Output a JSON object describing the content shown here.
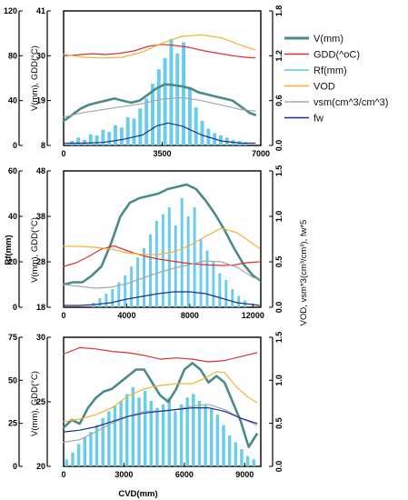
{
  "colors": {
    "V": "#4a8a88",
    "GDD": "#e03030",
    "Rf": "#5cc8e6",
    "VOD": "#f2b236",
    "vsm": "#a8a8a8",
    "fw": "#1d2f8c"
  },
  "legend": [
    {
      "key": "V",
      "label": "V(mm)"
    },
    {
      "key": "GDD",
      "label": "GDD(^oC)"
    },
    {
      "key": "Rf",
      "label": "Rf(mm)"
    },
    {
      "key": "VOD",
      "label": "VOD"
    },
    {
      "key": "vsm",
      "label": "vsm(cm^3/cm^3)"
    },
    {
      "key": "fw",
      "label": "fw"
    }
  ],
  "shared": {
    "xlabel": "CVD(mm)",
    "right_label": "VOD, vsm*3(cm³/cm³), fw*5"
  },
  "chart_data": [
    {
      "type": "line",
      "panel": "top",
      "xlim": [
        0,
        7000
      ],
      "xticks": [
        "0",
        "3500",
        "7000"
      ],
      "left_outer": {
        "ylim": [
          0,
          120
        ],
        "ticks": [
          "0",
          "40",
          "80",
          "120"
        ],
        "label": "Rf(mm)"
      },
      "left_inner": {
        "ylim": [
          8,
          41
        ],
        "ticks": [
          "8",
          "19",
          "30",
          "41"
        ],
        "label": "V(mm), GDD(°C)"
      },
      "right": {
        "ylim": [
          0,
          1.8
        ],
        "ticks": [
          "0.0",
          "0.6",
          "1.2",
          "1.8"
        ]
      },
      "series": [
        {
          "key": "Rf",
          "axis": "left_outer",
          "x": [
            300,
            520,
            740,
            960,
            1180,
            1400,
            1620,
            1840,
            2060,
            2280,
            2500,
            2720,
            2940,
            3160,
            3380,
            3600,
            3820,
            4040,
            4260,
            4480,
            4700,
            4920,
            5140,
            5360,
            5580,
            5800,
            6020,
            6240,
            6460
          ],
          "y": [
            4,
            7,
            5,
            10,
            9,
            14,
            12,
            18,
            16,
            25,
            24,
            33,
            42,
            55,
            68,
            78,
            95,
            82,
            92,
            52,
            34,
            22,
            15,
            11,
            9,
            7,
            5,
            4,
            3
          ]
        },
        {
          "key": "V",
          "axis": "left_inner",
          "x": [
            0,
            300,
            600,
            900,
            1200,
            1500,
            1800,
            2100,
            2400,
            2700,
            3000,
            3300,
            3600,
            3900,
            4200,
            4500,
            4800,
            5100,
            5400,
            5700,
            6000,
            6300,
            6600,
            6800
          ],
          "y": [
            14,
            15.5,
            17,
            18,
            18.5,
            19,
            19.5,
            19,
            18.5,
            19,
            20.5,
            22,
            23,
            22.8,
            22.5,
            22,
            21,
            20.5,
            20,
            19.5,
            19,
            17.5,
            16,
            15.5
          ]
        },
        {
          "key": "GDD",
          "axis": "left_inner",
          "x": [
            0,
            500,
            1000,
            1500,
            2000,
            2500,
            3000,
            3500,
            4000,
            4500,
            5000,
            5500,
            6000,
            6500,
            6800
          ],
          "y": [
            30,
            30.2,
            30.5,
            30.3,
            30.6,
            31.2,
            32.3,
            32.8,
            32.5,
            32.0,
            31.2,
            30.6,
            30.0,
            29.6,
            29.5
          ]
        },
        {
          "key": "VOD",
          "axis": "right",
          "x": [
            0,
            700,
            1400,
            2100,
            2800,
            3500,
            4200,
            4900,
            5600,
            6300,
            6800
          ],
          "y": [
            1.22,
            1.18,
            1.17,
            1.18,
            1.25,
            1.37,
            1.46,
            1.48,
            1.44,
            1.34,
            1.28
          ]
        },
        {
          "key": "vsm",
          "axis": "right",
          "x": [
            0,
            700,
            1400,
            2100,
            2800,
            3500,
            4200,
            4900,
            5600,
            6300,
            6800
          ],
          "y": [
            0.38,
            0.44,
            0.48,
            0.52,
            0.56,
            0.62,
            0.64,
            0.6,
            0.54,
            0.48,
            0.46
          ]
        },
        {
          "key": "fw",
          "axis": "right",
          "x": [
            0,
            700,
            1400,
            2100,
            2800,
            3300,
            3700,
            4200,
            4900,
            5600,
            6300,
            6800
          ],
          "y": [
            0.03,
            0.03,
            0.04,
            0.08,
            0.14,
            0.26,
            0.3,
            0.26,
            0.14,
            0.06,
            0.03,
            0.03
          ]
        }
      ]
    },
    {
      "type": "line",
      "panel": "middle",
      "xlim": [
        0,
        12500
      ],
      "xticks": [
        "0",
        "4000",
        "8000",
        "12000"
      ],
      "left_outer": {
        "ylim": [
          0,
          60
        ],
        "ticks": [
          "0",
          "20",
          "40",
          "60"
        ],
        "label": "Rf(mm)"
      },
      "left_inner": {
        "ylim": [
          18,
          48
        ],
        "ticks": [
          "18",
          "28",
          "38",
          "48"
        ],
        "label": "V(mm), GDD(°C)"
      },
      "right": {
        "ylim": [
          0,
          1.5
        ],
        "ticks": [
          "0.0",
          "0.5",
          "1.0",
          "1.5"
        ]
      },
      "series": [
        {
          "key": "Rf",
          "axis": "left_outer",
          "x": [
            1900,
            2300,
            2700,
            3100,
            3500,
            3900,
            4300,
            4700,
            5100,
            5500,
            5900,
            6300,
            6700,
            7100,
            7500,
            7900,
            8300,
            8700,
            9100,
            9500,
            9900,
            10300,
            10700,
            11100,
            11500
          ],
          "y": [
            2,
            4,
            6,
            8,
            11,
            14,
            18,
            22,
            26,
            32,
            38,
            41,
            44,
            36,
            48,
            40,
            44,
            30,
            25,
            20,
            15,
            12,
            8,
            5,
            3
          ]
        },
        {
          "key": "V",
          "axis": "left_inner",
          "x": [
            0,
            600,
            1200,
            1800,
            2400,
            3000,
            3600,
            4200,
            4800,
            5400,
            6000,
            6600,
            7200,
            7800,
            8400,
            9000,
            9600,
            10200,
            10800,
            11400,
            12000,
            12400
          ],
          "y": [
            23,
            23.5,
            23.5,
            25,
            27,
            32,
            38,
            41,
            42,
            42.5,
            43,
            44,
            44.5,
            45,
            44,
            41.5,
            38.5,
            35,
            31,
            27.5,
            25,
            24
          ]
        },
        {
          "key": "GDD",
          "axis": "left_inner",
          "x": [
            0,
            800,
            1600,
            2400,
            3200,
            3600,
            4400,
            5200,
            6000,
            6800,
            7600,
            8400,
            9200,
            10000,
            10800,
            11600,
            12400
          ],
          "y": [
            27,
            27.8,
            29.2,
            30.8,
            31.5,
            31,
            30,
            29.2,
            28.6,
            28.2,
            27.8,
            27.5,
            27.3,
            27.2,
            27.3,
            27.8,
            28
          ]
        },
        {
          "key": "VOD",
          "axis": "right",
          "x": [
            0,
            1000,
            2000,
            3000,
            4000,
            5000,
            6000,
            7000,
            8000,
            9000,
            10000,
            11000,
            12000,
            12400
          ],
          "y": [
            0.67,
            0.67,
            0.66,
            0.64,
            0.6,
            0.58,
            0.58,
            0.61,
            0.68,
            0.78,
            0.87,
            0.82,
            0.7,
            0.65
          ]
        },
        {
          "key": "vsm",
          "axis": "right",
          "x": [
            0,
            1000,
            2000,
            3000,
            4000,
            5000,
            6000,
            7000,
            8000,
            9000,
            10000,
            11000,
            12000,
            12400
          ],
          "y": [
            0.25,
            0.23,
            0.21,
            0.22,
            0.26,
            0.32,
            0.38,
            0.43,
            0.47,
            0.51,
            0.5,
            0.44,
            0.33,
            0.3
          ]
        },
        {
          "key": "fw",
          "axis": "right",
          "x": [
            0,
            1000,
            2000,
            3000,
            4000,
            5000,
            6000,
            7000,
            8000,
            9000,
            10000,
            11000,
            12000,
            12400
          ],
          "y": [
            0.02,
            0.02,
            0.03,
            0.05,
            0.09,
            0.12,
            0.15,
            0.17,
            0.17,
            0.15,
            0.1,
            0.05,
            0.03,
            0.02
          ]
        }
      ]
    },
    {
      "type": "line",
      "panel": "bottom",
      "xlim": [
        0,
        9800
      ],
      "xticks": [
        "0",
        "3000",
        "6000",
        "9000"
      ],
      "left_outer": {
        "ylim": [
          0,
          75
        ],
        "ticks": [
          "0",
          "25",
          "50",
          "75"
        ],
        "label": ""
      },
      "left_inner": {
        "ylim": [
          20,
          30
        ],
        "ticks": [
          "20",
          "25",
          "30"
        ],
        "label": "V(mm), GDD(°C)"
      },
      "right": {
        "ylim": [
          0,
          1.5
        ],
        "ticks": [
          "0.0",
          "0.5",
          "1.0",
          "1.5"
        ]
      },
      "series": [
        {
          "key": "Rf",
          "axis": "left_outer",
          "x": [
            150,
            450,
            750,
            1050,
            1350,
            1650,
            1950,
            2250,
            2550,
            2850,
            3150,
            3450,
            3750,
            4050,
            4350,
            4650,
            4950,
            5250,
            5550,
            5850,
            6150,
            6450,
            6750,
            7050,
            7350,
            7650,
            7950,
            8250,
            8550,
            8850,
            9150,
            9450
          ],
          "y": [
            4,
            8,
            13,
            17,
            20,
            24,
            28,
            32,
            35,
            38,
            42,
            46,
            40,
            44,
            38,
            34,
            36,
            40,
            32,
            36,
            40,
            42,
            38,
            36,
            34,
            30,
            24,
            18,
            14,
            10,
            6,
            4
          ]
        },
        {
          "key": "V",
          "axis": "left_inner",
          "x": [
            0,
            400,
            800,
            1200,
            1600,
            2000,
            2400,
            2800,
            3200,
            3600,
            4000,
            4400,
            4800,
            5200,
            5600,
            6000,
            6400,
            6800,
            7200,
            7600,
            8000,
            8400,
            8800,
            9200,
            9600
          ],
          "y": [
            23,
            23.6,
            23.3,
            24.5,
            25.3,
            25.8,
            26,
            26.5,
            27,
            27.5,
            27.5,
            26.5,
            25.5,
            25,
            26,
            27.5,
            28,
            27.5,
            26.5,
            27,
            26.5,
            25,
            23.5,
            21.5,
            22.5
          ]
        },
        {
          "key": "GDD",
          "axis": "left_inner",
          "x": [
            0,
            800,
            1600,
            2400,
            3200,
            4000,
            4800,
            5600,
            6400,
            7200,
            8000,
            8800,
            9600
          ],
          "y": [
            28.7,
            29.2,
            29.1,
            28.9,
            28.8,
            28.6,
            28.3,
            28.4,
            28.3,
            28.1,
            28.2,
            28.5,
            28.8
          ]
        },
        {
          "key": "VOD",
          "axis": "right",
          "x": [
            0,
            800,
            1600,
            2400,
            3200,
            4000,
            4800,
            5600,
            6400,
            7000,
            7600,
            8000,
            8600,
            9200,
            9600
          ],
          "y": [
            0.52,
            0.55,
            0.6,
            0.68,
            0.82,
            0.9,
            0.94,
            0.96,
            0.96,
            1.02,
            1.1,
            1.09,
            0.92,
            0.8,
            0.74
          ]
        },
        {
          "key": "vsm",
          "axis": "right",
          "x": [
            0,
            800,
            1600,
            2400,
            3200,
            4000,
            4800,
            5600,
            6400,
            7200,
            8000,
            8800,
            9600
          ],
          "y": [
            0.28,
            0.31,
            0.4,
            0.5,
            0.58,
            0.64,
            0.64,
            0.66,
            0.7,
            0.72,
            0.66,
            0.56,
            0.48
          ]
        },
        {
          "key": "fw",
          "axis": "right",
          "x": [
            0,
            800,
            1600,
            2400,
            3200,
            4000,
            4800,
            5600,
            6400,
            7200,
            8000,
            8800,
            9600
          ],
          "y": [
            0.4,
            0.42,
            0.46,
            0.52,
            0.58,
            0.62,
            0.64,
            0.66,
            0.68,
            0.68,
            0.64,
            0.56,
            0.5
          ]
        }
      ]
    }
  ]
}
